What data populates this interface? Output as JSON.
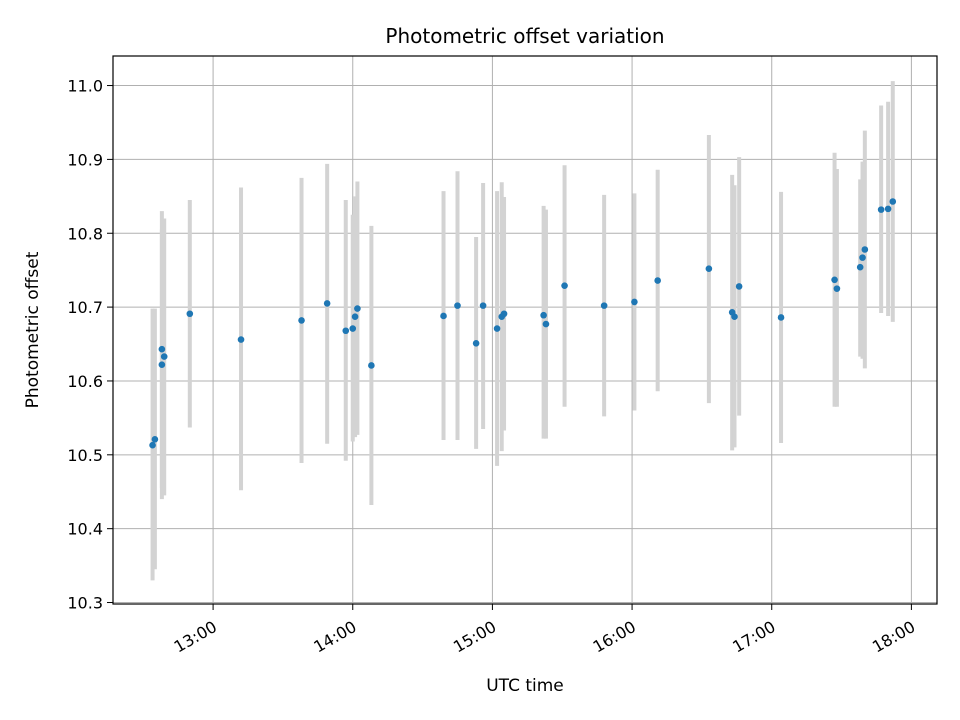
{
  "chart_data": {
    "type": "scatter",
    "title": "Photometric offset variation",
    "xlabel": "UTC time",
    "ylabel": "Photometric offset",
    "x_axis_type": "time",
    "xlim": [
      "12:17",
      "18:11"
    ],
    "ylim": [
      10.298,
      11.04
    ],
    "x_ticks": [
      "13:00",
      "14:00",
      "15:00",
      "16:00",
      "17:00",
      "18:00"
    ],
    "y_ticks": [
      "10.3",
      "10.4",
      "10.5",
      "10.6",
      "10.7",
      "10.8",
      "10.9",
      "11.0"
    ],
    "grid": true,
    "point_color": "#1f77b4",
    "errorbar_color": "#d3d3d3",
    "points": [
      {
        "x": "12:34",
        "y": 10.513,
        "low": 10.33,
        "high": 10.698
      },
      {
        "x": "12:35",
        "y": 10.521,
        "low": 10.345,
        "high": 10.698
      },
      {
        "x": "12:38",
        "y": 10.622,
        "low": 10.44,
        "high": 10.805
      },
      {
        "x": "12:38",
        "y": 10.643,
        "low": 10.455,
        "high": 10.83
      },
      {
        "x": "12:39",
        "y": 10.633,
        "low": 10.445,
        "high": 10.82
      },
      {
        "x": "12:50",
        "y": 10.691,
        "low": 10.537,
        "high": 10.845
      },
      {
        "x": "13:12",
        "y": 10.656,
        "low": 10.452,
        "high": 10.862
      },
      {
        "x": "13:38",
        "y": 10.682,
        "low": 10.489,
        "high": 10.875
      },
      {
        "x": "13:49",
        "y": 10.705,
        "low": 10.515,
        "high": 10.894
      },
      {
        "x": "13:57",
        "y": 10.668,
        "low": 10.492,
        "high": 10.845
      },
      {
        "x": "14:00",
        "y": 10.671,
        "low": 10.518,
        "high": 10.825
      },
      {
        "x": "14:01",
        "y": 10.687,
        "low": 10.524,
        "high": 10.85
      },
      {
        "x": "14:02",
        "y": 10.698,
        "low": 10.527,
        "high": 10.87
      },
      {
        "x": "14:08",
        "y": 10.621,
        "low": 10.432,
        "high": 10.81
      },
      {
        "x": "14:39",
        "y": 10.688,
        "low": 10.52,
        "high": 10.857
      },
      {
        "x": "14:45",
        "y": 10.702,
        "low": 10.52,
        "high": 10.884
      },
      {
        "x": "14:53",
        "y": 10.651,
        "low": 10.508,
        "high": 10.795
      },
      {
        "x": "14:56",
        "y": 10.702,
        "low": 10.535,
        "high": 10.868
      },
      {
        "x": "15:02",
        "y": 10.671,
        "low": 10.485,
        "high": 10.857
      },
      {
        "x": "15:04",
        "y": 10.687,
        "low": 10.505,
        "high": 10.869
      },
      {
        "x": "15:05",
        "y": 10.691,
        "low": 10.533,
        "high": 10.849
      },
      {
        "x": "15:22",
        "y": 10.689,
        "low": 10.522,
        "high": 10.837
      },
      {
        "x": "15:23",
        "y": 10.677,
        "low": 10.522,
        "high": 10.832
      },
      {
        "x": "15:31",
        "y": 10.729,
        "low": 10.565,
        "high": 10.892
      },
      {
        "x": "15:48",
        "y": 10.702,
        "low": 10.552,
        "high": 10.852
      },
      {
        "x": "16:01",
        "y": 10.707,
        "low": 10.56,
        "high": 10.854
      },
      {
        "x": "16:11",
        "y": 10.736,
        "low": 10.586,
        "high": 10.886
      },
      {
        "x": "16:33",
        "y": 10.752,
        "low": 10.57,
        "high": 10.933
      },
      {
        "x": "16:43",
        "y": 10.693,
        "low": 10.506,
        "high": 10.879
      },
      {
        "x": "16:44",
        "y": 10.687,
        "low": 10.51,
        "high": 10.865
      },
      {
        "x": "16:46",
        "y": 10.728,
        "low": 10.553,
        "high": 10.903
      },
      {
        "x": "17:04",
        "y": 10.686,
        "low": 10.516,
        "high": 10.856
      },
      {
        "x": "17:27",
        "y": 10.737,
        "low": 10.565,
        "high": 10.909
      },
      {
        "x": "17:28",
        "y": 10.725,
        "low": 10.565,
        "high": 10.887
      },
      {
        "x": "17:38",
        "y": 10.754,
        "low": 10.633,
        "high": 10.873
      },
      {
        "x": "17:39",
        "y": 10.767,
        "low": 10.63,
        "high": 10.897
      },
      {
        "x": "17:40",
        "y": 10.778,
        "low": 10.617,
        "high": 10.939
      },
      {
        "x": "17:47",
        "y": 10.832,
        "low": 10.692,
        "high": 10.973
      },
      {
        "x": "17:50",
        "y": 10.833,
        "low": 10.688,
        "high": 10.978
      },
      {
        "x": "17:52",
        "y": 10.843,
        "low": 10.68,
        "high": 11.006
      }
    ]
  }
}
